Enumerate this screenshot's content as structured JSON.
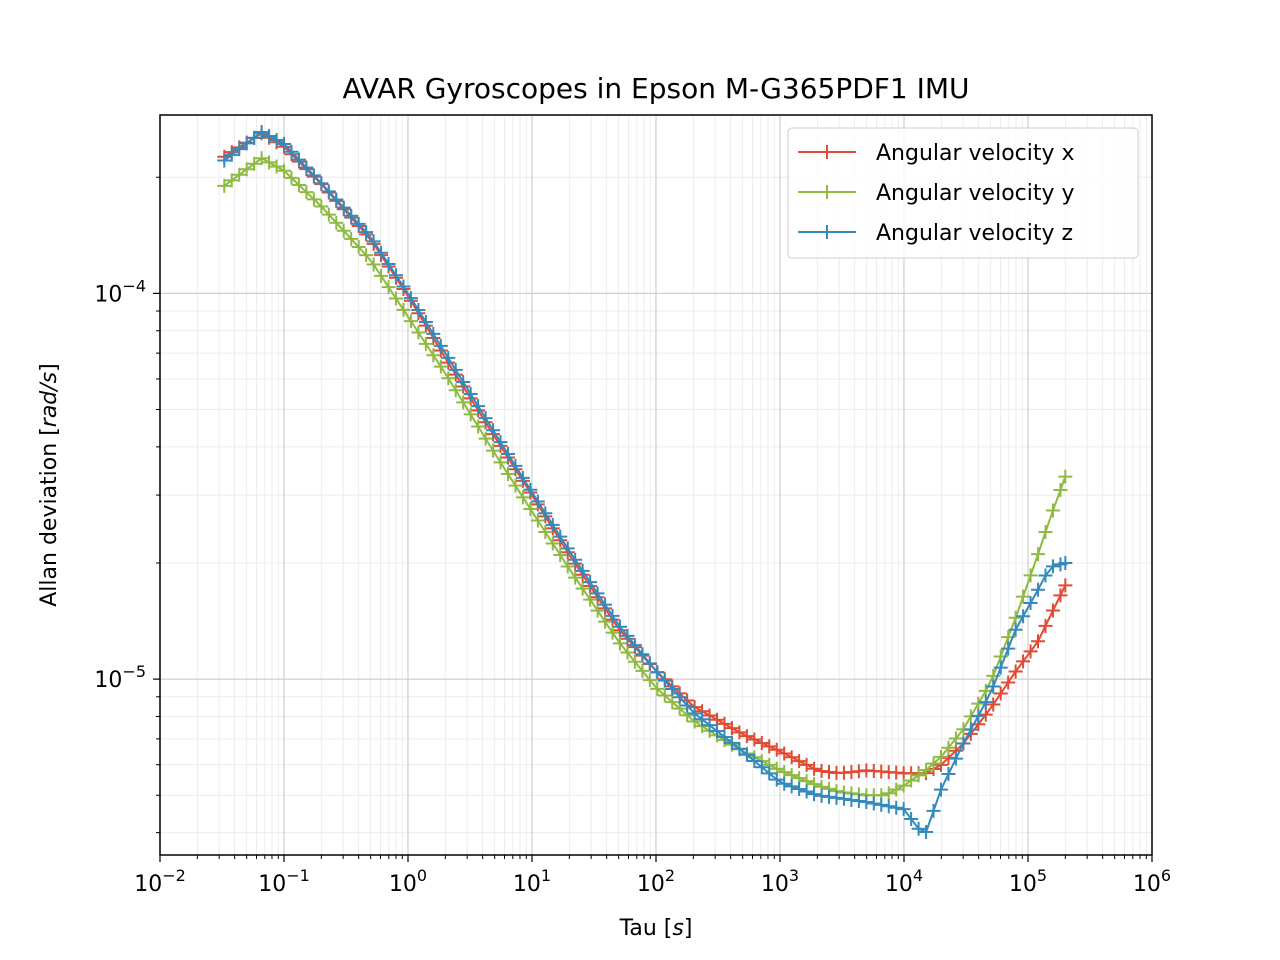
{
  "chart_data": {
    "type": "line",
    "title": "AVAR Gyroscopes in Epson M-G365PDF1 IMU",
    "xlabel_main": "Tau [",
    "xlabel_unit": "s",
    "xlabel_end": "]",
    "ylabel_main": "Allan deviation [",
    "ylabel_unit": "rad/s",
    "ylabel_end": "]",
    "xscale": "log",
    "yscale": "log",
    "xlim": [
      0.01,
      1000000
    ],
    "ylim": [
      3.5e-06,
      0.00029
    ],
    "grid": true,
    "legend_position": "top-right",
    "marker": "+",
    "x_ticks": [
      {
        "base": "10",
        "exp": "−2"
      },
      {
        "base": "10",
        "exp": "−1"
      },
      {
        "base": "10",
        "exp": "0"
      },
      {
        "base": "10",
        "exp": "1"
      },
      {
        "base": "10",
        "exp": "2"
      },
      {
        "base": "10",
        "exp": "3"
      },
      {
        "base": "10",
        "exp": "4"
      },
      {
        "base": "10",
        "exp": "5"
      },
      {
        "base": "10",
        "exp": "6"
      }
    ],
    "y_ticks": [
      {
        "base": "10",
        "exp": "−5"
      },
      {
        "base": "10",
        "exp": "−4"
      }
    ],
    "series": [
      {
        "name": "Angular velocity x",
        "color": "#e24a33",
        "x": [
          0.033,
          0.066,
          0.1,
          0.2,
          0.5,
          1,
          2,
          5,
          10,
          20,
          50,
          100,
          200,
          500,
          1000,
          2000,
          3000,
          5000,
          10000,
          15000,
          20000,
          30000,
          50000,
          80000,
          120000,
          150000,
          200000
        ],
        "y": [
          0.000226,
          0.00026,
          0.00024,
          0.000192,
          0.000138,
          9.85e-05,
          6.8e-05,
          4.25e-05,
          3e-05,
          2.1e-05,
          1.35e-05,
          1.05e-05,
          8.5e-06,
          7.2e-06,
          6.5e-06,
          5.8e-06,
          5.7e-06,
          5.8e-06,
          5.7e-06,
          5.7e-06,
          6e-06,
          6.8e-06,
          8.4e-06,
          1.05e-05,
          1.25e-05,
          1.45e-05,
          1.75e-05
        ]
      },
      {
        "name": "Angular velocity y",
        "color": "#8eba42",
        "x": [
          0.033,
          0.066,
          0.1,
          0.2,
          0.5,
          1,
          2,
          5,
          10,
          20,
          50,
          100,
          200,
          500,
          1000,
          2000,
          3000,
          5000,
          7000,
          10000,
          15000,
          20000,
          30000,
          50000,
          80000,
          120000,
          150000,
          200000
        ],
        "y": [
          0.00019,
          0.000224,
          0.000208,
          0.000168,
          0.000122,
          8.7e-05,
          6.2e-05,
          3.85e-05,
          2.72e-05,
          1.93e-05,
          1.25e-05,
          9.5e-06,
          7.8e-06,
          6.5e-06,
          5.8e-06,
          5.3e-06,
          5.1e-06,
          5e-06,
          5e-06,
          5.3e-06,
          5.8e-06,
          6.3e-06,
          7.4e-06,
          9.8e-06,
          1.45e-05,
          2.1e-05,
          2.6e-05,
          3.35e-05
        ]
      },
      {
        "name": "Angular velocity z",
        "color": "#348abd",
        "x": [
          0.033,
          0.066,
          0.1,
          0.2,
          0.5,
          1,
          2,
          5,
          10,
          20,
          50,
          100,
          200,
          500,
          1000,
          2000,
          5000,
          10000,
          13000,
          15000,
          20000,
          30000,
          50000,
          80000,
          120000,
          150000,
          200000
        ],
        "y": [
          0.000221,
          0.000262,
          0.000244,
          0.000193,
          0.00014,
          0.0001,
          7e-05,
          4.35e-05,
          3.05e-05,
          2.15e-05,
          1.38e-05,
          1.05e-05,
          8.2e-06,
          6.5e-06,
          5.4e-06,
          5e-06,
          4.8e-06,
          4.6e-06,
          4.1e-06,
          4e-06,
          5.2e-06,
          6.8e-06,
          9.2e-06,
          1.35e-05,
          1.7e-05,
          1.95e-05,
          2e-05
        ]
      }
    ]
  }
}
